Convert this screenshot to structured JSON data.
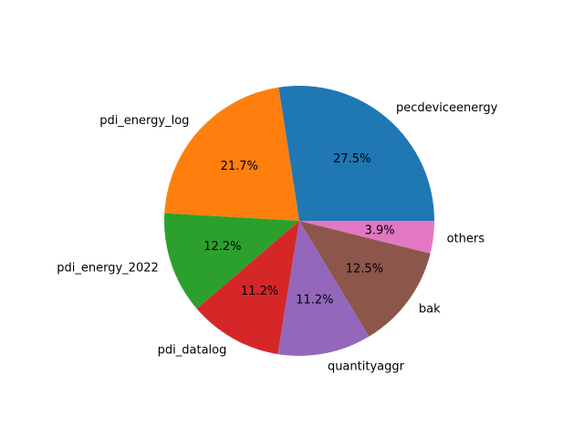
{
  "chart_data": {
    "type": "pie",
    "start_angle_deg": 0,
    "direction": "counterclockwise",
    "slices": [
      {
        "label": "pecdeviceenergy",
        "value": 27.5,
        "pct_text": "27.5%",
        "color": "#1f77b4"
      },
      {
        "label": "pdi_energy_log",
        "value": 21.7,
        "pct_text": "21.7%",
        "color": "#ff7f0e"
      },
      {
        "label": "pdi_energy_2022",
        "value": 12.2,
        "pct_text": "12.2%",
        "color": "#2ca02c"
      },
      {
        "label": "pdi_datalog",
        "value": 11.2,
        "pct_text": "11.2%",
        "color": "#d62728"
      },
      {
        "label": "quantityaggr",
        "value": 11.2,
        "pct_text": "11.2%",
        "color": "#9467bd"
      },
      {
        "label": "bak",
        "value": 12.5,
        "pct_text": "12.5%",
        "color": "#8c564b"
      },
      {
        "label": "others",
        "value": 3.9,
        "pct_text": "3.9%",
        "color": "#e377c2"
      }
    ]
  }
}
